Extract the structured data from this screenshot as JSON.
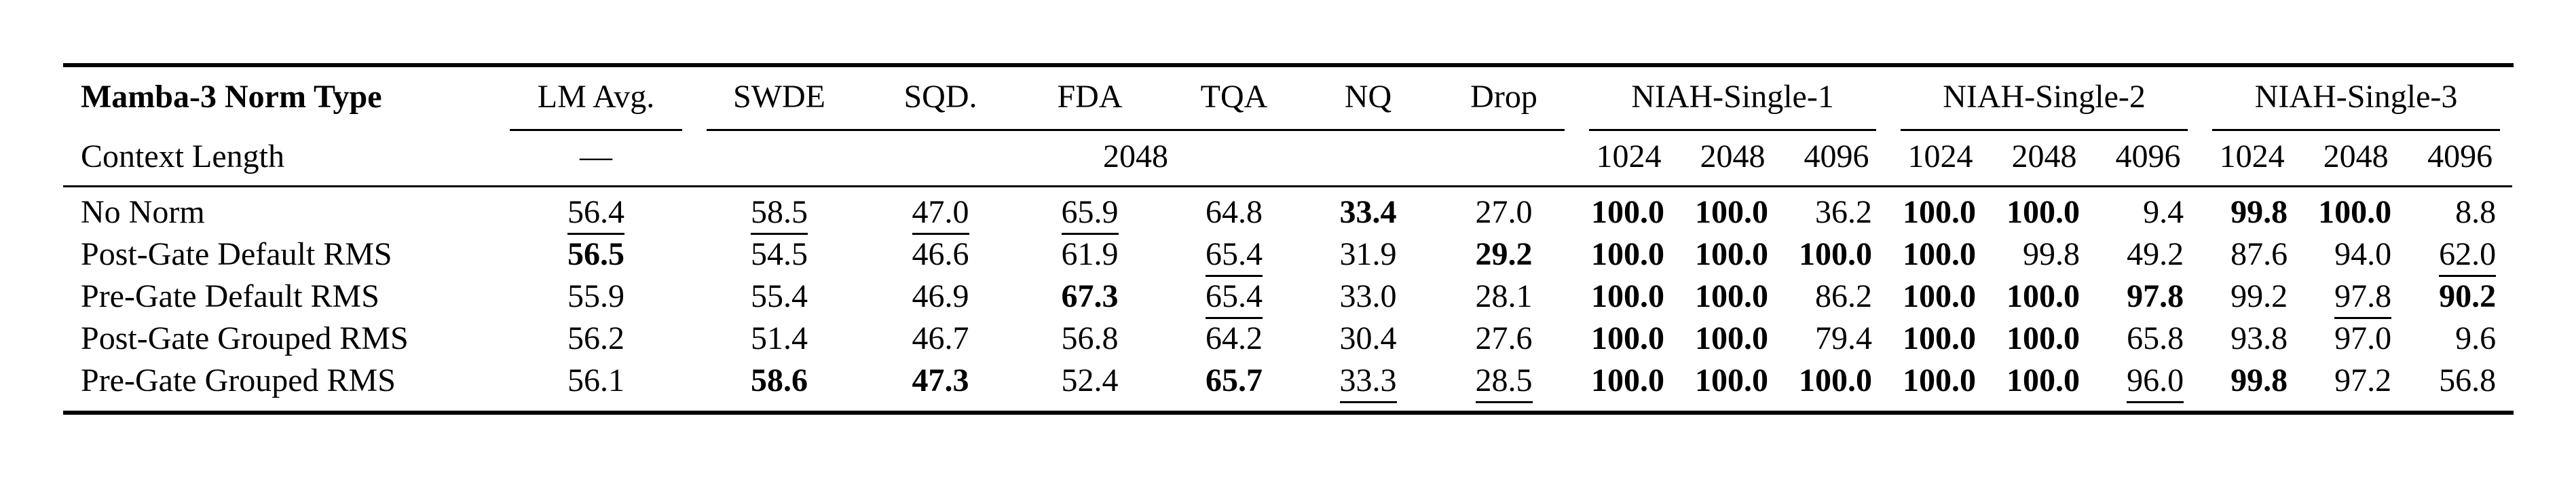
{
  "colors": {
    "text": "#000000",
    "background": "#ffffff",
    "rule": "#000000"
  },
  "table": {
    "header": {
      "title_col": "Mamba-3 Norm Type",
      "lm_avg": "LM Avg.",
      "benchmarks": [
        "SWDE",
        "SQD.",
        "FDA",
        "TQA",
        "NQ",
        "Drop"
      ],
      "niah_groups": [
        "NIAH-Single-1",
        "NIAH-Single-2",
        "NIAH-Single-3"
      ]
    },
    "context_row": {
      "label": "Context Length",
      "lm_avg_value": "—",
      "benchmarks_value": "2048",
      "niah_lengths": [
        "1024",
        "2048",
        "4096"
      ]
    },
    "style_legend": {
      "b": "bold (best)",
      "u": "underlined (second best)",
      "": "plain"
    },
    "rows": [
      {
        "name": "No Norm",
        "values": [
          "56.4",
          "58.5",
          "47.0",
          "65.9",
          "64.8",
          "33.4",
          "27.0",
          "100.0",
          "100.0",
          "36.2",
          "100.0",
          "100.0",
          "9.4",
          "99.8",
          "100.0",
          "8.8"
        ],
        "styles": [
          "u",
          "u",
          "u",
          "u",
          "",
          "b",
          "",
          "b",
          "b",
          "",
          "b",
          "b",
          "",
          "b",
          "b",
          ""
        ]
      },
      {
        "name": "Post-Gate Default RMS",
        "values": [
          "56.5",
          "54.5",
          "46.6",
          "61.9",
          "65.4",
          "31.9",
          "29.2",
          "100.0",
          "100.0",
          "100.0",
          "100.0",
          "99.8",
          "49.2",
          "87.6",
          "94.0",
          "62.0"
        ],
        "styles": [
          "b",
          "",
          "",
          "",
          "u",
          "",
          "b",
          "b",
          "b",
          "b",
          "b",
          "",
          "",
          "",
          "",
          "u"
        ]
      },
      {
        "name": "Pre-Gate Default RMS",
        "values": [
          "55.9",
          "55.4",
          "46.9",
          "67.3",
          "65.4",
          "33.0",
          "28.1",
          "100.0",
          "100.0",
          "86.2",
          "100.0",
          "100.0",
          "97.8",
          "99.2",
          "97.8",
          "90.2"
        ],
        "styles": [
          "",
          "",
          "",
          "b",
          "u",
          "",
          "",
          "b",
          "b",
          "",
          "b",
          "b",
          "b",
          "",
          "u",
          "b"
        ]
      },
      {
        "name": "Post-Gate Grouped RMS",
        "values": [
          "56.2",
          "51.4",
          "46.7",
          "56.8",
          "64.2",
          "30.4",
          "27.6",
          "100.0",
          "100.0",
          "79.4",
          "100.0",
          "100.0",
          "65.8",
          "93.8",
          "97.0",
          "9.6"
        ],
        "styles": [
          "",
          "",
          "",
          "",
          "",
          "",
          "",
          "b",
          "b",
          "",
          "b",
          "b",
          "",
          "",
          "",
          ""
        ]
      },
      {
        "name": "Pre-Gate Grouped RMS",
        "values": [
          "56.1",
          "58.6",
          "47.3",
          "52.4",
          "65.7",
          "33.3",
          "28.5",
          "100.0",
          "100.0",
          "100.0",
          "100.0",
          "100.0",
          "96.0",
          "99.8",
          "97.2",
          "56.8"
        ],
        "styles": [
          "",
          "b",
          "b",
          "",
          "b",
          "u",
          "u",
          "b",
          "b",
          "b",
          "b",
          "b",
          "u",
          "b",
          "",
          ""
        ]
      }
    ]
  }
}
